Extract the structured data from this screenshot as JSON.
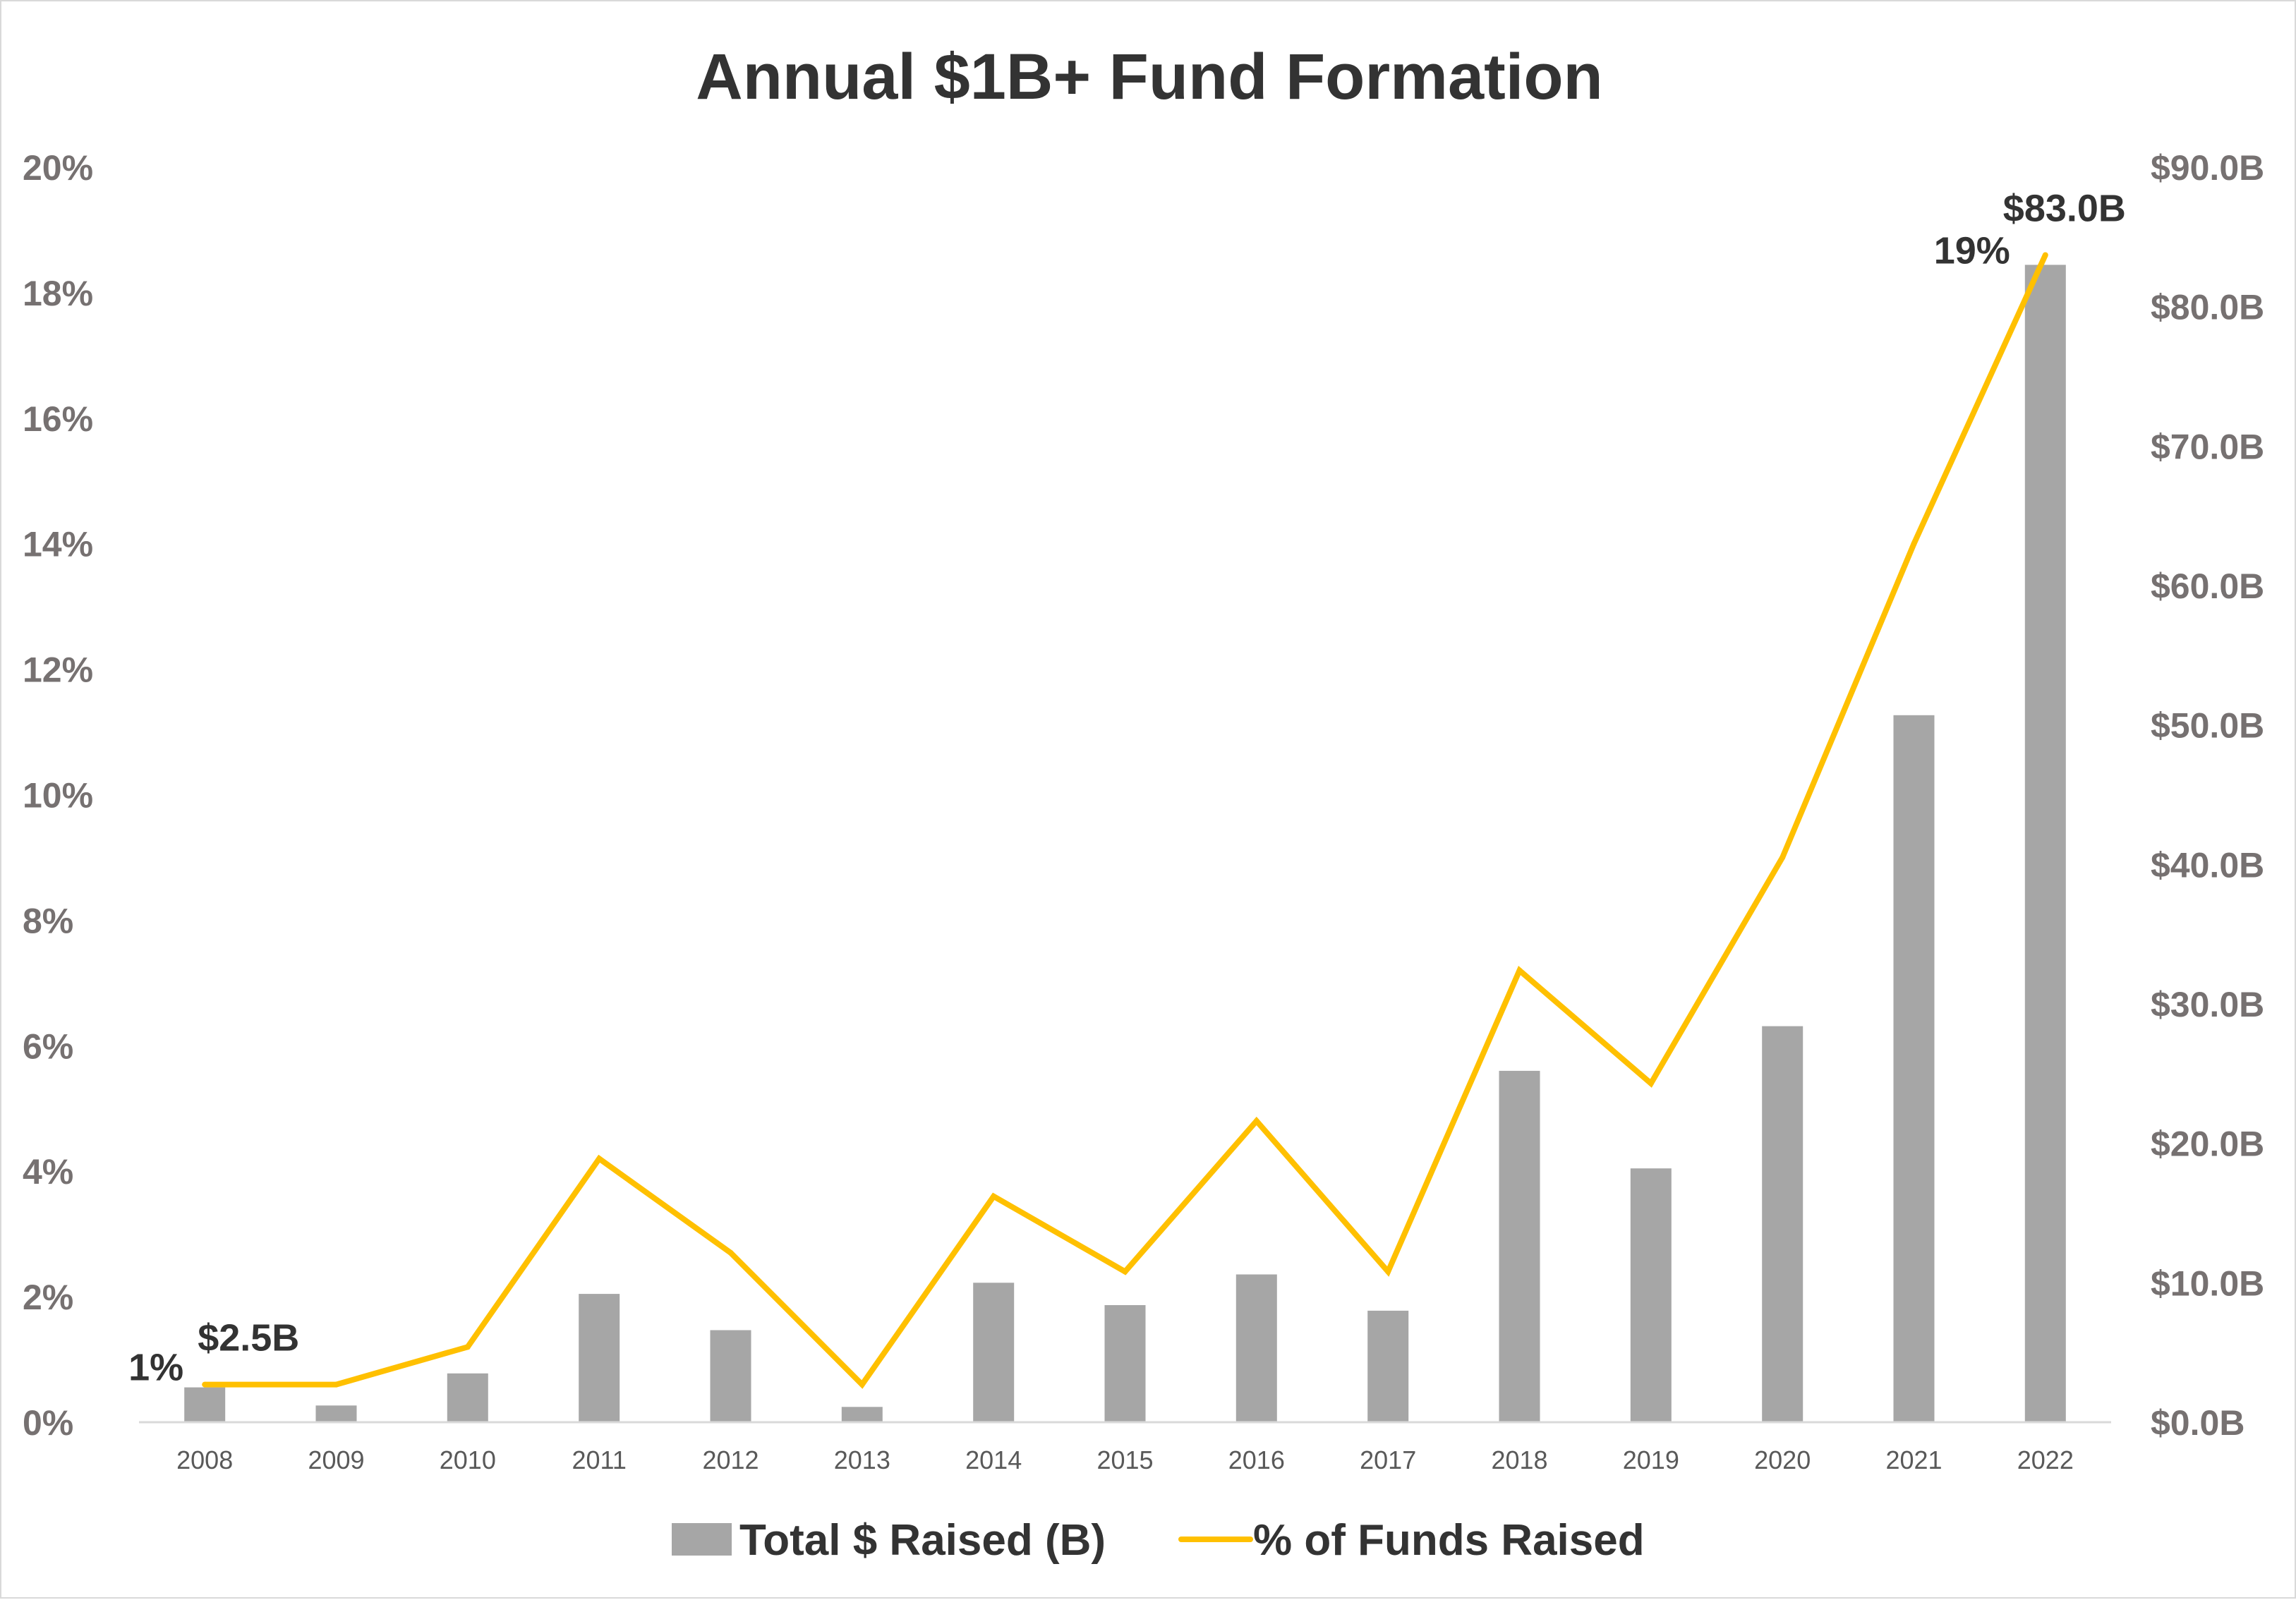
{
  "chart_data": {
    "type": "bar",
    "title": "Annual $1B+ Fund Formation",
    "categories": [
      "2008",
      "2009",
      "2010",
      "2011",
      "2012",
      "2013",
      "2014",
      "2015",
      "2016",
      "2017",
      "2018",
      "2019",
      "2020",
      "2021",
      "2022"
    ],
    "series": [
      {
        "name": "Total $ Raised (B)",
        "type": "bar",
        "axis": "right",
        "color": "#a6a6a6",
        "values": [
          2.5,
          1.2,
          3.5,
          9.2,
          6.6,
          1.1,
          10.0,
          8.4,
          10.6,
          8.0,
          25.2,
          18.2,
          28.4,
          50.7,
          83.0
        ]
      },
      {
        "name": "% of Funds Raised",
        "type": "line",
        "axis": "left",
        "color": "#ffc000",
        "values": [
          0.6,
          0.6,
          1.2,
          4.2,
          2.7,
          0.6,
          3.6,
          2.4,
          4.8,
          2.4,
          7.2,
          5.4,
          9.0,
          14.0,
          18.6
        ]
      }
    ],
    "y_left": {
      "min": 0,
      "max": 20,
      "step": 2,
      "tick_labels": [
        "0%",
        "2%",
        "4%",
        "6%",
        "8%",
        "10%",
        "12%",
        "14%",
        "16%",
        "18%",
        "20%"
      ]
    },
    "y_right": {
      "min": 0,
      "max": 90,
      "step": 10,
      "tick_labels": [
        "$0.0B",
        "$10.0B",
        "$20.0B",
        "$30.0B",
        "$40.0B",
        "$50.0B",
        "$60.0B",
        "$70.0B",
        "$80.0B",
        "$90.0B"
      ]
    },
    "annotations": [
      {
        "text": "1%",
        "series": "% of Funds Raised",
        "category": "2008"
      },
      {
        "text": "$2.5B",
        "series": "Total $ Raised (B)",
        "category": "2008"
      },
      {
        "text": "19%",
        "series": "% of Funds Raised",
        "category": "2022"
      },
      {
        "text": "$83.0B",
        "series": "Total $ Raised (B)",
        "category": "2022"
      }
    ],
    "legend": {
      "position": "bottom",
      "items": [
        "Total $ Raised (B)",
        "% of Funds Raised"
      ]
    },
    "grid": false
  }
}
